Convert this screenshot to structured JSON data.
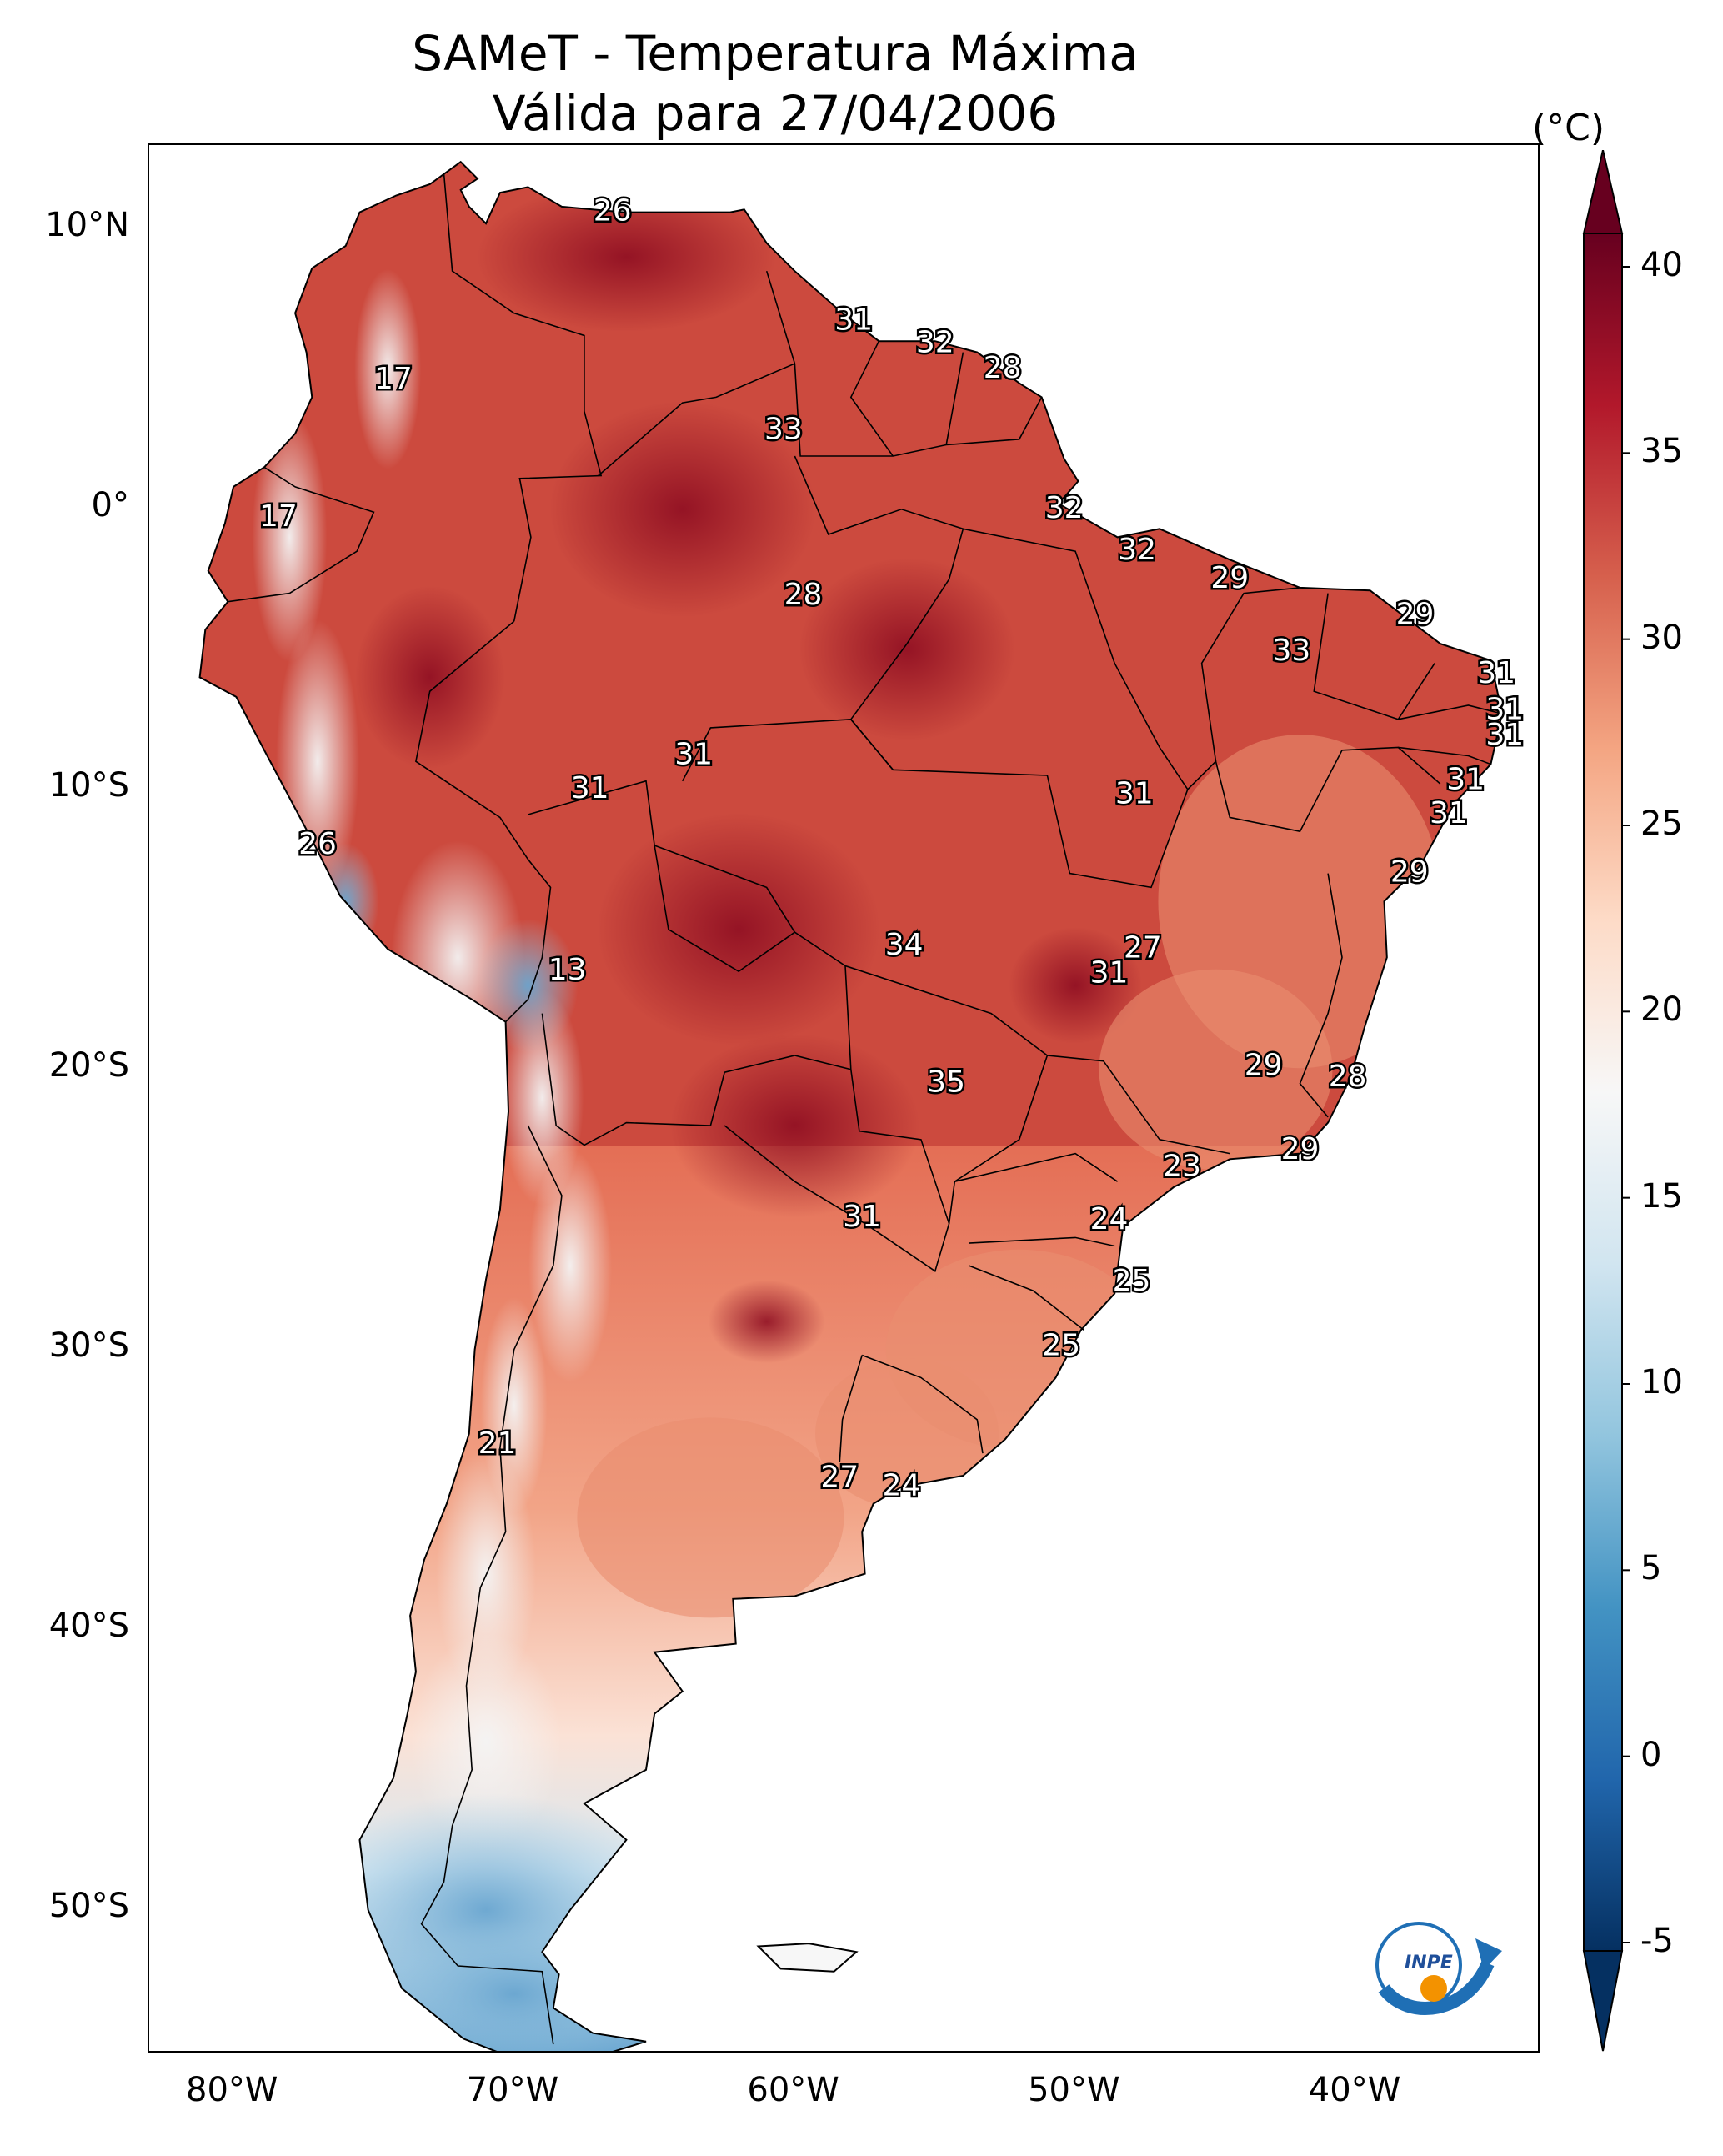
{
  "title": {
    "line1": "SAMeT - Temperatura Máxima",
    "line2": "Válida para 27/04/2006"
  },
  "colorbar": {
    "unit": "(°C)",
    "ticks": [
      "40",
      "35",
      "30",
      "25",
      "20",
      "15",
      "10",
      "5",
      "0",
      "-5"
    ],
    "range": [
      -5,
      40
    ],
    "colors": [
      "#053061",
      "#2166ac",
      "#4393c3",
      "#92c5de",
      "#d1e5f0",
      "#f7f7f7",
      "#fddbc7",
      "#f4a582",
      "#d6604d",
      "#b2182b",
      "#67001f"
    ]
  },
  "axes": {
    "lon_labels": [
      "80°W",
      "70°W",
      "60°W",
      "50°W",
      "40°W"
    ],
    "lat_labels": [
      "10°N",
      "0°",
      "10°S",
      "20°S",
      "30°S",
      "40°S",
      "50°S"
    ]
  },
  "logo": {
    "text": "INPE",
    "icon": "inpe-logo-icon"
  },
  "map_labels": [
    {
      "v": "26",
      "lon": -66.5,
      "lat": 10.6
    },
    {
      "v": "17",
      "lon": -74.3,
      "lat": 4.6
    },
    {
      "v": "31",
      "lon": -57.9,
      "lat": 6.7
    },
    {
      "v": "32",
      "lon": -55.0,
      "lat": 5.9
    },
    {
      "v": "28",
      "lon": -52.6,
      "lat": 5.0
    },
    {
      "v": "33",
      "lon": -60.4,
      "lat": 2.8
    },
    {
      "v": "17",
      "lon": -78.4,
      "lat": -0.3
    },
    {
      "v": "32",
      "lon": -50.4,
      "lat": 0.0
    },
    {
      "v": "32",
      "lon": -47.8,
      "lat": -1.5
    },
    {
      "v": "29",
      "lon": -44.5,
      "lat": -2.5
    },
    {
      "v": "28",
      "lon": -59.7,
      "lat": -3.1
    },
    {
      "v": "29",
      "lon": -37.9,
      "lat": -3.8
    },
    {
      "v": "33",
      "lon": -42.3,
      "lat": -5.1
    },
    {
      "v": "31",
      "lon": -35.0,
      "lat": -5.9
    },
    {
      "v": "31",
      "lon": -34.7,
      "lat": -7.2
    },
    {
      "v": "31",
      "lon": -34.7,
      "lat": -8.1
    },
    {
      "v": "31",
      "lon": -63.6,
      "lat": -8.8
    },
    {
      "v": "31",
      "lon": -67.3,
      "lat": -10.0
    },
    {
      "v": "31",
      "lon": -47.9,
      "lat": -10.2
    },
    {
      "v": "31",
      "lon": -36.1,
      "lat": -9.7
    },
    {
      "v": "31",
      "lon": -36.7,
      "lat": -10.9
    },
    {
      "v": "26",
      "lon": -77.0,
      "lat": -12.0
    },
    {
      "v": "29",
      "lon": -38.1,
      "lat": -13.0
    },
    {
      "v": "34",
      "lon": -56.1,
      "lat": -15.6
    },
    {
      "v": "27",
      "lon": -47.6,
      "lat": -15.7
    },
    {
      "v": "31",
      "lon": -48.8,
      "lat": -16.6
    },
    {
      "v": "13",
      "lon": -68.1,
      "lat": -16.5
    },
    {
      "v": "29",
      "lon": -43.3,
      "lat": -19.9
    },
    {
      "v": "35",
      "lon": -54.6,
      "lat": -20.5
    },
    {
      "v": "28",
      "lon": -40.3,
      "lat": -20.3
    },
    {
      "v": "29",
      "lon": -42.0,
      "lat": -22.9
    },
    {
      "v": "23",
      "lon": -46.2,
      "lat": -23.5
    },
    {
      "v": "31",
      "lon": -57.6,
      "lat": -25.3
    },
    {
      "v": "24",
      "lon": -48.8,
      "lat": -25.4
    },
    {
      "v": "25",
      "lon": -48.0,
      "lat": -27.6
    },
    {
      "v": "25",
      "lon": -50.5,
      "lat": -29.9
    },
    {
      "v": "21",
      "lon": -70.6,
      "lat": -33.4
    },
    {
      "v": "27",
      "lon": -58.4,
      "lat": -34.6
    },
    {
      "v": "24",
      "lon": -56.2,
      "lat": -34.9
    }
  ]
}
